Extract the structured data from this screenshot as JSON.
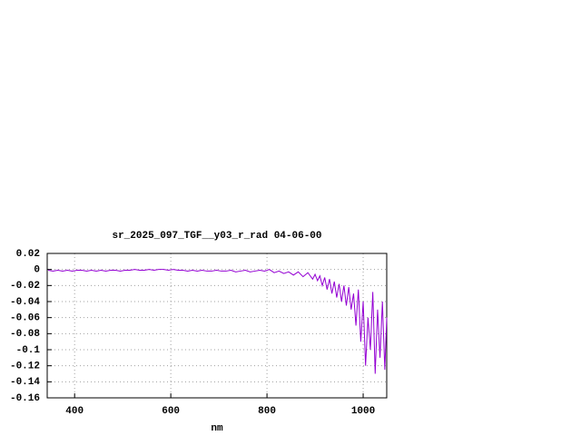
{
  "chart_data": {
    "type": "line",
    "title": "sr_2025_097_TGF__y03_r_rad 04-06-00",
    "x_label": "nm",
    "xlim": [
      343,
      1049
    ],
    "xticks": [
      400,
      600,
      800,
      1000
    ],
    "ylim": [
      -0.16,
      0.02
    ],
    "yticks": [
      0.02,
      0,
      -0.02,
      -0.04,
      -0.06,
      -0.08,
      -0.1,
      -0.12,
      -0.14,
      -0.16
    ],
    "grid": true,
    "series": [
      {
        "color": "#9400d3",
        "x": [
          345,
          355,
          365,
          375,
          385,
          395,
          405,
          415,
          425,
          435,
          445,
          455,
          465,
          475,
          485,
          495,
          505,
          515,
          525,
          535,
          545,
          555,
          565,
          575,
          585,
          595,
          605,
          615,
          625,
          635,
          645,
          655,
          665,
          675,
          685,
          695,
          705,
          715,
          725,
          735,
          745,
          755,
          765,
          775,
          785,
          795,
          805,
          815,
          825,
          835,
          845,
          855,
          865,
          875,
          885,
          895,
          900,
          905,
          910,
          915,
          920,
          925,
          930,
          935,
          940,
          945,
          950,
          955,
          960,
          965,
          970,
          975,
          980,
          985,
          990,
          995,
          1000,
          1005,
          1010,
          1015,
          1020,
          1025,
          1030,
          1035,
          1040,
          1045,
          1049
        ],
        "values": [
          -0.001,
          -0.002,
          -0.001,
          -0.002,
          -0.001,
          -0.002,
          -0.001,
          -0.001,
          -0.002,
          -0.001,
          -0.002,
          -0.001,
          -0.002,
          -0.001,
          -0.001,
          -0.002,
          -0.001,
          -0.001,
          0,
          -0.001,
          -0.001,
          0,
          -0.001,
          0,
          0,
          -0.001,
          0,
          -0.001,
          -0.001,
          -0.002,
          -0.001,
          -0.002,
          -0.001,
          -0.002,
          -0.002,
          -0.001,
          -0.002,
          -0.002,
          -0.001,
          -0.003,
          -0.002,
          -0.001,
          -0.003,
          -0.002,
          -0.001,
          -0.002,
          0,
          -0.004,
          -0.002,
          -0.005,
          -0.003,
          -0.007,
          -0.003,
          -0.009,
          -0.004,
          -0.012,
          -0.006,
          -0.014,
          -0.008,
          -0.02,
          -0.01,
          -0.025,
          -0.012,
          -0.03,
          -0.015,
          -0.035,
          -0.018,
          -0.04,
          -0.02,
          -0.045,
          -0.022,
          -0.05,
          -0.03,
          -0.07,
          -0.025,
          -0.09,
          -0.04,
          -0.12,
          -0.06,
          -0.1,
          -0.028,
          -0.13,
          -0.05,
          -0.11,
          -0.04,
          -0.125,
          -0.06
        ]
      }
    ]
  }
}
